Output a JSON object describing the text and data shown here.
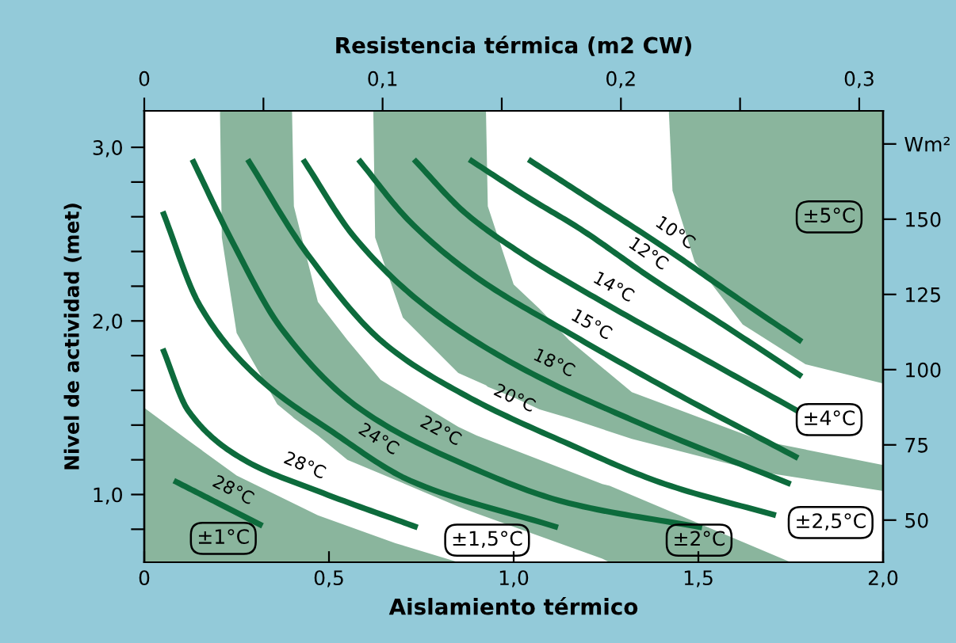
{
  "chart_data": {
    "type": "line",
    "xlabel": "Aislamiento térmico",
    "x2label": "Resistencia térmica (m2 CW)",
    "ylabel": "Nivel de actividad (met)",
    "xlim": [
      0,
      2
    ],
    "xticks": [
      0,
      {
        "value": 0.5,
        "label": "0,5"
      },
      {
        "value": 1.0,
        "label": "1,0"
      },
      {
        "value": 1.5,
        "label": "1,5"
      },
      {
        "value": 2.0,
        "label": "2,0"
      }
    ],
    "x2lim": [
      0,
      0.31
    ],
    "x2ticks": [
      0,
      {
        "value": 0.05,
        "label": null
      },
      {
        "value": 0.1,
        "label": "0,1"
      },
      {
        "value": 0.15,
        "label": null
      },
      {
        "value": 0.2,
        "label": "0,2"
      },
      {
        "value": 0.25,
        "label": null
      },
      {
        "value": 0.3,
        "label": "0,3"
      }
    ],
    "ylim": [
      0.61,
      3.21
    ],
    "yticks": [
      {
        "value": 0.8,
        "label": null
      },
      {
        "value": 1.0,
        "label": "1,0"
      },
      {
        "value": 1.2,
        "label": null
      },
      {
        "value": 1.4,
        "label": null
      },
      {
        "value": 1.6,
        "label": null
      },
      {
        "value": 1.8,
        "label": null
      },
      {
        "value": 2.0,
        "label": "2,0"
      },
      {
        "value": 2.2,
        "label": null
      },
      {
        "value": 2.4,
        "label": null
      },
      {
        "value": 2.6,
        "label": null
      },
      {
        "value": 2.8,
        "label": null
      },
      {
        "value": 3.0,
        "label": "3,0"
      }
    ],
    "y2lim": [
      36,
      186
    ],
    "y2ticks": [
      50,
      75,
      100,
      125,
      150,
      {
        "value": 175,
        "label": "Wm²"
      }
    ],
    "grid": false,
    "legend": false,
    "annotations": [
      "±1°C",
      "±1,5°C",
      "±2°C",
      "±2,5°C",
      "±4°C",
      "±5°C"
    ],
    "series": [
      {
        "type": "area",
        "color": "#8ab59d",
        "x": [
          0,
          0.12,
          0.25,
          0.47,
          0.68,
          0.85
        ],
        "values": [
          null,
          null,
          null,
          null,
          null,
          null
        ],
        "upper": [
          1.5,
          1.31,
          1.11,
          0.88,
          0.72,
          0.61
        ],
        "lower": [
          0.61,
          0.61,
          0.61,
          0.61,
          0.61,
          0.61
        ]
      },
      {
        "type": "area",
        "color": "#8ab59d",
        "x": [
          0.205,
          0.21,
          0.25,
          0.36,
          0.4,
          0.405,
          0.47,
          0.55,
          0.64,
          0.85,
          0.9,
          1.24,
          1.26,
          1.75
        ],
        "values": [
          null,
          null,
          null,
          null,
          null,
          null,
          null,
          null,
          null,
          null,
          null,
          null,
          null,
          null
        ],
        "upper": [
          3.21,
          3.21,
          3.21,
          3.21,
          3.21,
          2.66,
          2.11,
          1.89,
          1.66,
          1.39,
          1.34,
          1.06,
          1.05,
          0.61
        ],
        "lower": [
          3.21,
          2.48,
          1.93,
          1.52,
          1.45,
          1.44,
          1.34,
          1.2,
          1.12,
          0.93,
          0.89,
          0.63,
          0.61,
          0.61
        ]
      },
      {
        "type": "area",
        "color": "#8ab59d",
        "x": [
          0.62,
          0.625,
          0.7,
          0.85,
          0.925,
          0.93,
          1.0,
          1.07,
          1.15,
          1.32,
          1.67,
          2.0
        ],
        "values": [
          null,
          null,
          null,
          null,
          null,
          null,
          null,
          null,
          null,
          null,
          null,
          null
        ],
        "upper": [
          3.21,
          3.21,
          3.21,
          3.21,
          3.21,
          2.66,
          2.21,
          2.07,
          1.89,
          1.59,
          1.31,
          1.17
        ],
        "lower": [
          3.21,
          2.48,
          2.02,
          1.7,
          1.63,
          1.62,
          1.56,
          1.49,
          1.44,
          1.32,
          1.13,
          1.02
        ]
      },
      {
        "type": "area",
        "color": "#8ab59d",
        "x": [
          1.42,
          1.43,
          1.49,
          1.62,
          1.79,
          2.0
        ],
        "values": [
          null,
          null,
          null,
          null,
          null,
          null
        ],
        "upper": [
          3.21,
          3.21,
          3.21,
          3.21,
          3.21,
          3.21
        ],
        "lower": [
          3.21,
          2.75,
          2.34,
          1.98,
          1.75,
          1.64
        ]
      },
      {
        "name": "10°C",
        "color": "#0d6b3c",
        "x": [
          1.04,
          1.2,
          1.41,
          1.6,
          1.78
        ],
        "values": [
          2.93,
          2.71,
          2.42,
          2.14,
          1.88
        ]
      },
      {
        "name": "12°C",
        "color": "#0d6b3c",
        "x": [
          0.88,
          1.04,
          1.18,
          1.37,
          1.58,
          1.78
        ],
        "values": [
          2.93,
          2.71,
          2.53,
          2.25,
          1.96,
          1.68
        ]
      },
      {
        "name": "14°C",
        "color": "#0d6b3c",
        "x": [
          0.73,
          0.87,
          1.02,
          1.24,
          1.5,
          1.77
        ],
        "values": [
          2.93,
          2.62,
          2.39,
          2.11,
          1.8,
          1.48
        ]
      },
      {
        "name": "15°C",
        "color": "#0d6b3c",
        "x": [
          0.58,
          0.72,
          0.9,
          1.15,
          1.45,
          1.77
        ],
        "values": [
          2.93,
          2.57,
          2.25,
          1.93,
          1.57,
          1.21
        ]
      },
      {
        "name": "18°C",
        "color": "#0d6b3c",
        "x": [
          0.43,
          0.57,
          0.77,
          1.02,
          1.32,
          1.75
        ],
        "values": [
          2.93,
          2.48,
          2.07,
          1.73,
          1.43,
          1.06
        ]
      },
      {
        "name": "20°C",
        "color": "#0d6b3c",
        "x": [
          0.28,
          0.44,
          0.65,
          0.87,
          1.15,
          1.41,
          1.71
        ],
        "values": [
          2.93,
          2.39,
          1.87,
          1.57,
          1.29,
          1.06,
          0.88
        ]
      },
      {
        "name": "22°C",
        "color": "#0d6b3c",
        "x": [
          0.13,
          0.24,
          0.37,
          0.58,
          0.87,
          1.15,
          1.51
        ],
        "values": [
          2.93,
          2.45,
          1.96,
          1.5,
          1.17,
          0.95,
          0.81
        ]
      },
      {
        "name": "24°C",
        "color": "#0d6b3c",
        "x": [
          0.05,
          0.15,
          0.3,
          0.51,
          0.72,
          1.12
        ],
        "values": [
          2.63,
          2.09,
          1.69,
          1.36,
          1.08,
          0.81
        ]
      },
      {
        "name": "28°C",
        "color": "#0d6b3c",
        "x": [
          0.05,
          0.12,
          0.27,
          0.47,
          0.74
        ],
        "values": [
          1.84,
          1.48,
          1.2,
          1.02,
          0.81
        ]
      },
      {
        "name": "28°C",
        "color": "#0d6b3c",
        "x": [
          0.08,
          0.2,
          0.32
        ],
        "values": [
          1.08,
          0.95,
          0.82
        ]
      }
    ]
  }
}
